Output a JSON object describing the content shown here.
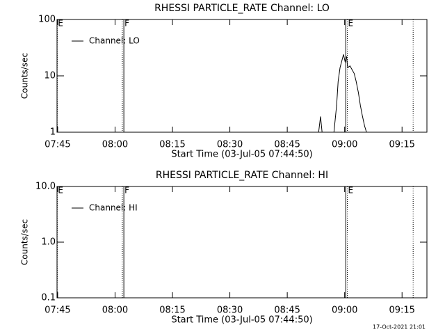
{
  "chart_data": [
    {
      "type": "line",
      "title": "RHESSI PARTICLE_RATE Channel: LO",
      "xlabel": "Start Time (03-Jul-05 07:44:50)",
      "ylabel": "Counts/sec",
      "log_y": true,
      "xlim": [
        464.833,
        561.5
      ],
      "xticks": [
        {
          "value": 465,
          "label": "07:45"
        },
        {
          "value": 480,
          "label": "08:00"
        },
        {
          "value": 495,
          "label": "08:15"
        },
        {
          "value": 510,
          "label": "08:30"
        },
        {
          "value": 525,
          "label": "08:45"
        },
        {
          "value": 540,
          "label": "09:00"
        },
        {
          "value": 555,
          "label": "09:15"
        }
      ],
      "ylim": [
        1,
        100
      ],
      "yticks": [
        1,
        10,
        100
      ],
      "series": [
        {
          "name": "Channel: LO",
          "color": "#000000",
          "x": [
            533.2,
            533.7,
            534.1,
            537.2,
            537.9,
            538.3,
            538.8,
            539.4,
            539.7,
            540.1,
            540.5,
            540.8,
            541.4,
            541.9,
            542.5,
            543.0,
            543.6,
            544.1,
            544.6,
            545.2,
            545.7
          ],
          "values": [
            1,
            1.9,
            1,
            1,
            3,
            8,
            14,
            20,
            24,
            18,
            22,
            14,
            15,
            13,
            11,
            8,
            5,
            3,
            2,
            1.3,
            1
          ]
        }
      ],
      "markers": [
        {
          "x": 464.9,
          "style": "dotted",
          "label": "E"
        },
        {
          "x": 481.9,
          "style": "dotted"
        },
        {
          "x": 482.3,
          "style": "solid",
          "label": "F"
        },
        {
          "x": 540.3,
          "style": "solid"
        },
        {
          "x": 540.7,
          "style": "dotted",
          "label": "E"
        },
        {
          "x": 557.9,
          "style": "dotted"
        }
      ]
    },
    {
      "type": "line",
      "title": "RHESSI PARTICLE_RATE Channel: HI",
      "xlabel": "Start Time (03-Jul-05 07:44:50)",
      "ylabel": "Counts/sec",
      "log_y": true,
      "xlim": [
        464.833,
        561.5
      ],
      "xticks": [
        {
          "value": 465,
          "label": "07:45"
        },
        {
          "value": 480,
          "label": "08:00"
        },
        {
          "value": 495,
          "label": "08:15"
        },
        {
          "value": 510,
          "label": "08:30"
        },
        {
          "value": 525,
          "label": "08:45"
        },
        {
          "value": 540,
          "label": "09:00"
        },
        {
          "value": 555,
          "label": "09:15"
        }
      ],
      "ylim": [
        0.1,
        10
      ],
      "yticks": [
        0.1,
        {
          "value": 1,
          "label": "1.0"
        },
        {
          "value": 10,
          "label": "10.0"
        }
      ],
      "series": [
        {
          "name": "Channel: HI",
          "color": "#000000",
          "x": [],
          "values": []
        }
      ],
      "markers": [
        {
          "x": 464.9,
          "style": "dotted",
          "label": "E"
        },
        {
          "x": 481.9,
          "style": "dotted"
        },
        {
          "x": 482.3,
          "style": "solid",
          "label": "F"
        },
        {
          "x": 540.3,
          "style": "solid"
        },
        {
          "x": 540.7,
          "style": "dotted",
          "label": "E"
        },
        {
          "x": 557.9,
          "style": "dotted"
        }
      ]
    }
  ],
  "timestamp": "17-Oct-2021 21:01"
}
